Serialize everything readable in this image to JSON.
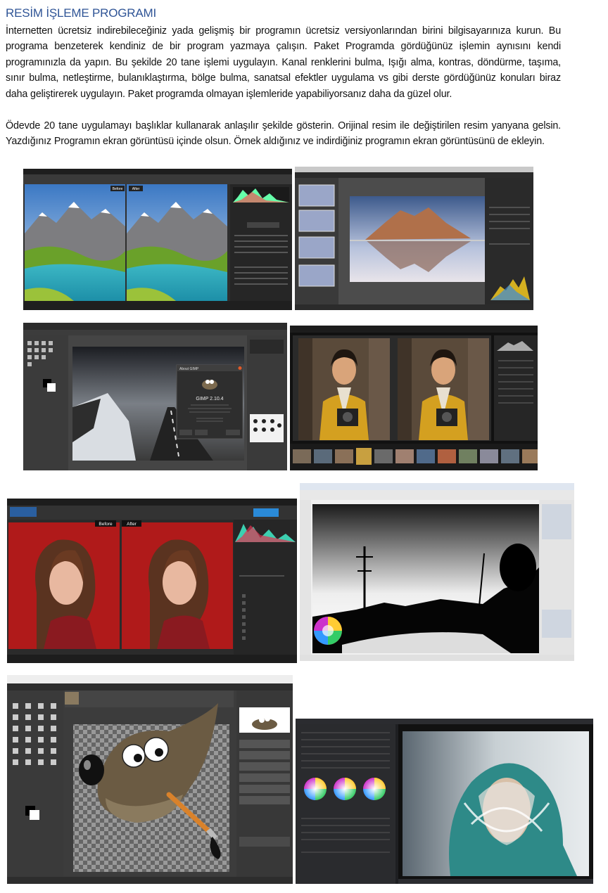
{
  "header": {
    "title": "RESİM İŞLEME PROGRAMI"
  },
  "paragraphs": [
    "İnternetten ücretsiz indirebileceğiniz yada gelişmiş bir programın ücretsiz versiyonlarından birini bilgisayarınıza kurun. Bu programa benzeterek kendiniz de bir program yazmaya çalışın. Paket Programda gördüğünüz işlemin aynısını kendi programınızla da yapın. Bu şekilde 20 tane işlemi uygulayın. Kanal renklerini bulma, Işığı alma, kontras, döndürme, taşıma, sınır bulma, netleştirme, bulanıklaştırma, bölge bulma, sanatsal efektler uygulama vs gibi derste gördüğünüz konuları biraz daha geliştirerek uygulayın. Paket programda olmayan işlemleride yapabiliyorsanız daha da güzel olur.",
    "Ödevde 20 tane uygulamayı başlıklar kullanarak anlaşılır şekilde gösterin. Orijinal resim ile değiştirilen resim yanyana gelsin. Yazdığınız Programın ekran görüntüsü içinde olsun. Örnek aldığınız ve indirdiğiniz programın ekran görüntüsünü de ekleyin."
  ],
  "screenshots": [
    {
      "before": "Before",
      "after": "After"
    },
    {},
    {
      "dialog_title": "About GIMP",
      "version": "GIMP 2.10.4"
    },
    {},
    {
      "before": "Before",
      "after": "After"
    },
    {},
    {},
    {}
  ]
}
